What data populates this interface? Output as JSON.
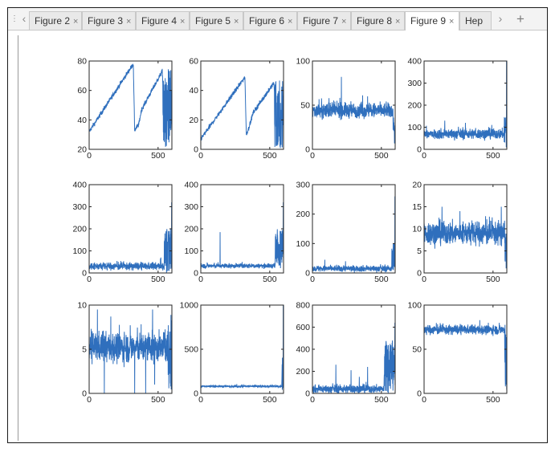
{
  "tabbar": {
    "menu_icon": "⋮",
    "prev_icon": "‹",
    "next_icon": "›",
    "add_icon": "+",
    "tabs": [
      {
        "label": "Figure 2",
        "active": false
      },
      {
        "label": "Figure 3",
        "active": false
      },
      {
        "label": "Figure 4",
        "active": false
      },
      {
        "label": "Figure 5",
        "active": false
      },
      {
        "label": "Figure 6",
        "active": false
      },
      {
        "label": "Figure 7",
        "active": false
      },
      {
        "label": "Figure 8",
        "active": false
      },
      {
        "label": "Figure 9",
        "active": true
      },
      {
        "label": "Hep",
        "active": false,
        "truncated": true
      }
    ],
    "close_glyph": "×"
  },
  "colors": {
    "line": "#2f6fbd",
    "axes": "#262626",
    "tab_active_bg": "#ffffff",
    "tab_bg": "#e9e9e9"
  },
  "chart_data": [
    {
      "type": "line",
      "xlim": [
        0,
        600
      ],
      "ylim": [
        20,
        80
      ],
      "xticks": [
        0,
        500
      ],
      "yticks": [
        20,
        40,
        60,
        80
      ],
      "series": [
        {
          "kind": "sawtooth",
          "points": [
            [
              0,
              32
            ],
            [
              320,
              78
            ],
            [
              330,
              33
            ],
            [
              360,
              37
            ],
            [
              380,
              47
            ],
            [
              530,
              73
            ],
            [
              555,
              25
            ],
            [
              570,
              65
            ],
            [
              590,
              40
            ],
            [
              600,
              60
            ]
          ],
          "noise": 1.5,
          "tail_from": 535,
          "tail_range": [
            20,
            75
          ]
        }
      ]
    },
    {
      "type": "line",
      "xlim": [
        0,
        600
      ],
      "ylim": [
        0,
        60
      ],
      "xticks": [
        0,
        500
      ],
      "yticks": [
        0,
        20,
        40,
        60
      ],
      "series": [
        {
          "kind": "sawtooth",
          "points": [
            [
              0,
              7
            ],
            [
              320,
              49
            ],
            [
              330,
              10
            ],
            [
              360,
              18
            ],
            [
              380,
              25
            ],
            [
              530,
              45
            ],
            [
              555,
              5
            ],
            [
              570,
              40
            ],
            [
              590,
              20
            ],
            [
              600,
              35
            ]
          ],
          "noise": 1.5,
          "tail_from": 535,
          "tail_range": [
            0,
            48
          ]
        }
      ]
    },
    {
      "type": "line",
      "xlim": [
        0,
        600
      ],
      "ylim": [
        0,
        100
      ],
      "xticks": [
        0,
        500
      ],
      "yticks": [
        0,
        50,
        100
      ],
      "series": [
        {
          "kind": "noise",
          "base": 44,
          "noise": 8,
          "spikes": [
            [
              210,
              82
            ],
            [
              120,
              58
            ],
            [
              400,
              60
            ]
          ],
          "tail_from": 585,
          "tail_range": [
            5,
            40
          ]
        }
      ]
    },
    {
      "type": "line",
      "xlim": [
        0,
        600
      ],
      "ylim": [
        0,
        400
      ],
      "xticks": [
        0,
        500
      ],
      "yticks": [
        0,
        100,
        200,
        300,
        400
      ],
      "series": [
        {
          "kind": "noise",
          "base": 70,
          "noise": 22,
          "spikes": [
            [
              150,
              130
            ],
            [
              300,
              120
            ]
          ],
          "tail_from": 580,
          "tail_range": [
            0,
            150
          ],
          "end_spike": 400
        }
      ]
    },
    {
      "type": "line",
      "xlim": [
        0,
        600
      ],
      "ylim": [
        0,
        400
      ],
      "xticks": [
        0,
        500
      ],
      "yticks": [
        0,
        100,
        200,
        300,
        400
      ],
      "series": [
        {
          "kind": "noise",
          "base": 30,
          "noise": 16,
          "spikes": [
            [
              520,
              70
            ]
          ],
          "tail_from": 545,
          "tail_range": [
            0,
            200
          ],
          "end_spike": 320
        }
      ]
    },
    {
      "type": "line",
      "xlim": [
        0,
        600
      ],
      "ylim": [
        0,
        400
      ],
      "xticks": [
        0,
        500
      ],
      "yticks": [
        0,
        100,
        200,
        300,
        400
      ],
      "series": [
        {
          "kind": "noise",
          "base": 32,
          "noise": 10,
          "spikes": [
            [
              140,
              185
            ],
            [
              300,
              50
            ]
          ],
          "tail_from": 540,
          "tail_range": [
            20,
            200
          ],
          "end_spike": 320
        }
      ]
    },
    {
      "type": "line",
      "xlim": [
        0,
        600
      ],
      "ylim": [
        0,
        300
      ],
      "xticks": [
        0,
        500
      ],
      "yticks": [
        0,
        100,
        200,
        300
      ],
      "series": [
        {
          "kind": "noise",
          "base": 15,
          "noise": 10,
          "spikes": [
            [
              90,
              45
            ],
            [
              240,
              40
            ]
          ],
          "tail_from": 575,
          "tail_range": [
            0,
            100
          ],
          "end_spike": 260
        }
      ]
    },
    {
      "type": "line",
      "xlim": [
        0,
        600
      ],
      "ylim": [
        0,
        20
      ],
      "xticks": [
        0,
        500
      ],
      "yticks": [
        0,
        5,
        10,
        15,
        20
      ],
      "series": [
        {
          "kind": "noise",
          "base": 9,
          "noise": 2.5,
          "spikes": [
            [
              130,
              15
            ],
            [
              260,
              14
            ],
            [
              560,
              15
            ]
          ],
          "tail_from": 585,
          "tail_range": [
            1,
            9
          ]
        }
      ]
    },
    {
      "type": "line",
      "xlim": [
        0,
        600
      ],
      "ylim": [
        0,
        10
      ],
      "xticks": [
        0,
        500
      ],
      "yticks": [
        0,
        5,
        10
      ],
      "series": [
        {
          "kind": "noise",
          "base": 5.2,
          "noise": 1.6,
          "spikes": [
            [
              60,
              9.5
            ],
            [
              460,
              9.5
            ],
            [
              110,
              0
            ],
            [
              330,
              0
            ],
            [
              410,
              0
            ],
            [
              475,
              1
            ]
          ],
          "tail_from": 570,
          "tail_range": [
            0,
            9
          ]
        }
      ]
    },
    {
      "type": "line",
      "xlim": [
        0,
        600
      ],
      "ylim": [
        0,
        1000
      ],
      "xticks": [
        0,
        500
      ],
      "yticks": [
        0,
        500,
        1000
      ],
      "series": [
        {
          "kind": "noise",
          "base": 80,
          "noise": 12,
          "spikes": [],
          "tail_from": 588,
          "tail_range": [
            40,
            500
          ],
          "end_spike": 1040
        }
      ]
    },
    {
      "type": "line",
      "xlim": [
        0,
        600
      ],
      "ylim": [
        0,
        800
      ],
      "xticks": [
        0,
        500
      ],
      "yticks": [
        0,
        200,
        400,
        600,
        800
      ],
      "series": [
        {
          "kind": "noise",
          "base": 40,
          "noise": 35,
          "spikes": [
            [
              170,
              260
            ],
            [
              280,
              210
            ],
            [
              340,
              150
            ],
            [
              400,
              240
            ]
          ],
          "tail_from": 520,
          "tail_range": [
            0,
            500
          ],
          "end_spike": 640
        }
      ]
    },
    {
      "type": "line",
      "xlim": [
        0,
        600
      ],
      "ylim": [
        0,
        100
      ],
      "xticks": [
        0,
        500
      ],
      "yticks": [
        0,
        50,
        100
      ],
      "series": [
        {
          "kind": "noise",
          "base": 72,
          "noise": 5,
          "spikes": [],
          "tail_from": 585,
          "tail_range": [
            0,
            80
          ]
        }
      ]
    }
  ]
}
